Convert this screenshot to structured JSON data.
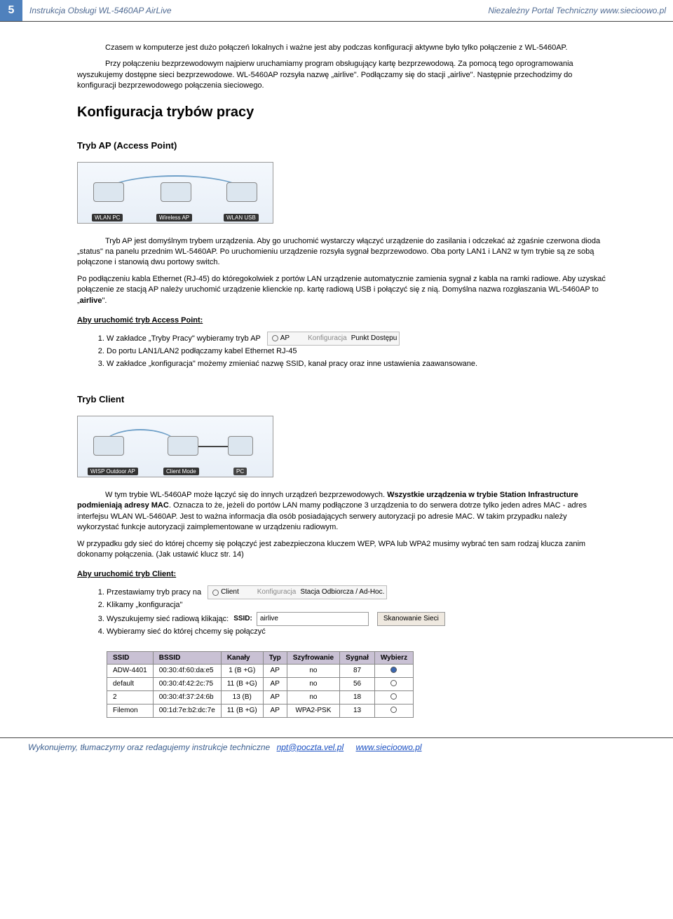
{
  "header": {
    "page_number": "5",
    "left_title": "Instrukcja Obsługi WL-5460AP AirLive",
    "right_title": "Niezależny Portal Techniczny www.siecioowo.pl"
  },
  "intro": {
    "p1": "Czasem w komputerze jest dużo połączeń lokalnych i ważne jest aby podczas konfiguracji aktywne było tylko połączenie z WL-5460AP.",
    "p2": "Przy połączeniu bezprzewodowym najpierw uruchamiamy program obsługujący kartę bezprzewodową. Za pomocą tego oprogramowania wyszukujemy dostępne sieci bezprzewodowe. WL-5460AP rozsyła nazwę „airlive\". Podłączamy się do stacji „airlive\". Następnie przechodzimy do konfiguracji bezprzewodowego połączenia sieciowego."
  },
  "section_title": "Konfiguracja trybów pracy",
  "ap": {
    "title": "Tryb AP (Access Point)",
    "diagram": {
      "labels": [
        "WLAN PC",
        "Wireless AP",
        "WLAN USB"
      ],
      "bg": "#e8eff7",
      "arc_color": "#6fa0c8"
    },
    "p1": "Tryb AP jest domyślnym trybem urządzenia. Aby go uruchomić wystarczy włączyć urządzenie do zasilania i odczekać aż zgaśnie czerwona dioda „status\" na panelu przednim WL-5460AP. Po uruchomieniu urządzenie rozsyła sygnał bezprzewodowo. Oba porty LAN1 i LAN2  w tym trybie są ze sobą połączone i stanowią dwu portowy switch.",
    "p2_a": "Po podłączeniu kabla Ethernet (RJ-45) do któregokolwiek z portów LAN urządzenie automatycznie zamienia sygnał z kabla na ramki radiowe. Aby uzyskać połączenie ze stacją AP należy uruchomić urządzenie klienckie np. kartę radiową USB i połączyć się z nią. Domyślna nazwa rozgłaszania WL-5460AP to „",
    "p2_b": "airlive",
    "p2_c": "\".",
    "howto_title": "Aby uruchomić tryb Access Point:",
    "steps": {
      "s1": "W zakładce „Tryby Pracy\" wybieramy tryb AP",
      "s2": "Do portu LAN1/LAN2 podłączamy kabel Ethernet RJ-45",
      "s3": "W zakładce „konfiguracja\" możemy zmieniać nazwę SSID, kanał pracy oraz inne ustawienia zaawansowane."
    },
    "radio": {
      "option": "AP",
      "link1": "Konfiguracja",
      "link2": "Punkt Dostępu"
    }
  },
  "client": {
    "title": "Tryb Client",
    "diagram": {
      "labels": [
        "WISP Outdoor AP",
        "Client Mode",
        "PC"
      ],
      "bg": "#e8eff7"
    },
    "p1_a": "W tym trybie WL-5460AP może łączyć się do innych urządzeń bezprzewodowych. ",
    "p1_b": "Wszystkie urządzenia w trybie Station Infrastructure podmieniają adresy MAC",
    "p1_c": ". Oznacza to że, jeżeli do portów LAN mamy podłączone 3 urządzenia to do serwera dotrze tylko jeden adres MAC - adres interfejsu WLAN WL-5460AP. Jest to ważna informacja dla osób posiadających serwery autoryzacji po adresie MAC. W takim przypadku należy wykorzystać funkcje autoryzacji zaimplementowane w urządzeniu radiowym.",
    "p2": "W przypadku gdy sieć do której chcemy się połączyć jest zabezpieczona kluczem WEP, WPA lub WPA2 musimy wybrać ten sam rodzaj klucza zanim dokonamy połączenia. (Jak ustawić klucz str. 14)",
    "howto_title": "Aby uruchomić tryb Client:",
    "steps": {
      "s1": "Przestawiamy tryb pracy na",
      "s2": "Klikamy „konfiguracja\"",
      "s3": "Wyszukujemy sieć radiową klikając:",
      "s4": "Wybieramy sieć do której chcemy się połączyć"
    },
    "radio": {
      "option": "Client",
      "link1": "Konfiguracja",
      "link2": "Stacja Odbiorcza / Ad-Hoc."
    },
    "ssid": {
      "label": "SSID:",
      "value": "airlive",
      "button": "Skanowanie Sieci"
    },
    "table": {
      "headers": [
        "SSID",
        "BSSID",
        "Kanały",
        "Typ",
        "Szyfrowanie",
        "Sygnał",
        "Wybierz"
      ],
      "header_bg": "#c9c1d4",
      "rows": [
        {
          "ssid": "ADW-4401",
          "bssid": "00:30:4f:60:da:e5",
          "ch": "1 (B +G)",
          "typ": "AP",
          "enc": "no",
          "sig": "87",
          "sel": true
        },
        {
          "ssid": "default",
          "bssid": "00:30:4f:42:2c:75",
          "ch": "11 (B +G)",
          "typ": "AP",
          "enc": "no",
          "sig": "56",
          "sel": false
        },
        {
          "ssid": "2",
          "bssid": "00:30:4f:37:24:6b",
          "ch": "13 (B)",
          "typ": "AP",
          "enc": "no",
          "sig": "18",
          "sel": false
        },
        {
          "ssid": "Filemon",
          "bssid": "00:1d:7e:b2:dc:7e",
          "ch": "11 (B +G)",
          "typ": "AP",
          "enc": "WPA2-PSK",
          "sig": "13",
          "sel": false
        }
      ]
    }
  },
  "footer": {
    "text": "Wykonujemy, tłumaczymy oraz redagujemy instrukcje techniczne",
    "email": "npt@poczta.vel.pl",
    "site": "www.siecioowo.pl"
  }
}
